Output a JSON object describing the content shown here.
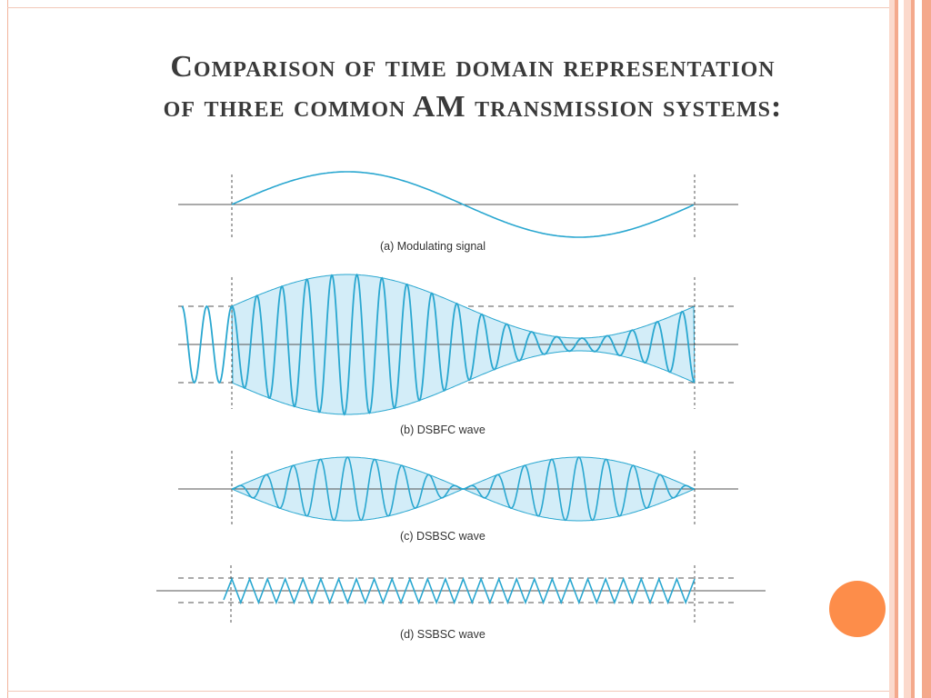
{
  "slide": {
    "title_line1": "Comparison of time domain representation",
    "title_line2": "of three common AM transmission systems:"
  },
  "panels": [
    {
      "id": "a",
      "caption": "(a)   Modulating signal"
    },
    {
      "id": "b",
      "caption": "(b)   DSBFC wave"
    },
    {
      "id": "c",
      "caption": "(c)   DSBSC wave"
    },
    {
      "id": "d",
      "caption": "(d)   SSBSC wave"
    }
  ],
  "colors": {
    "wave": "#2aa7d0",
    "fill": "#d3edf8",
    "axis": "#555555",
    "accent_dot": "#fd8d4a",
    "stripe_dark": "#f4a98c",
    "stripe_light": "#fbd9cc"
  }
}
